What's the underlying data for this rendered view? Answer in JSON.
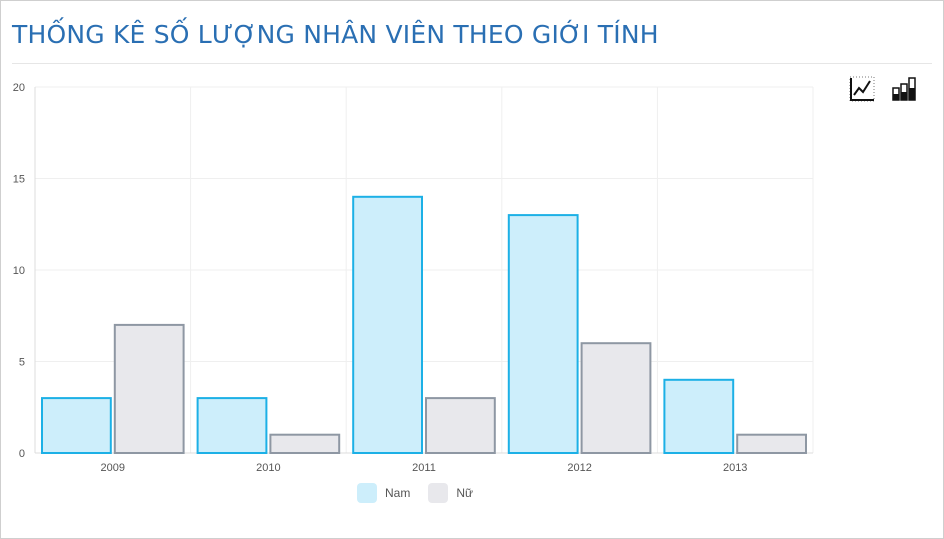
{
  "title": "THỐNG KÊ SỐ LƯỢNG NHÂN VIÊN THEO GIỚI TÍNH",
  "toolbar": {
    "icons": [
      "line-chart-icon",
      "bar-chart-icon"
    ]
  },
  "colors": {
    "nam_fill": "#cdeefb",
    "nam_stroke": "#1cb0e6",
    "nu_fill": "#e8e8ec",
    "nu_stroke": "#8e97a3",
    "title": "#2a6fb3",
    "grid": "#efefef",
    "axis_text": "#555555"
  },
  "chart_data": {
    "type": "bar",
    "title": "THỐNG KÊ SỐ LƯỢNG NHÂN VIÊN THEO GIỚI TÍNH",
    "categories": [
      "2009",
      "2010",
      "2011",
      "2012",
      "2013"
    ],
    "series": [
      {
        "name": "Nam",
        "values": [
          3,
          3,
          14,
          13,
          4
        ]
      },
      {
        "name": "Nữ",
        "values": [
          7,
          1,
          3,
          6,
          1
        ]
      }
    ],
    "ylim": [
      0,
      20
    ],
    "yticks": [
      0,
      5,
      10,
      15,
      20
    ],
    "grid": true,
    "legend": "bottom-center"
  }
}
